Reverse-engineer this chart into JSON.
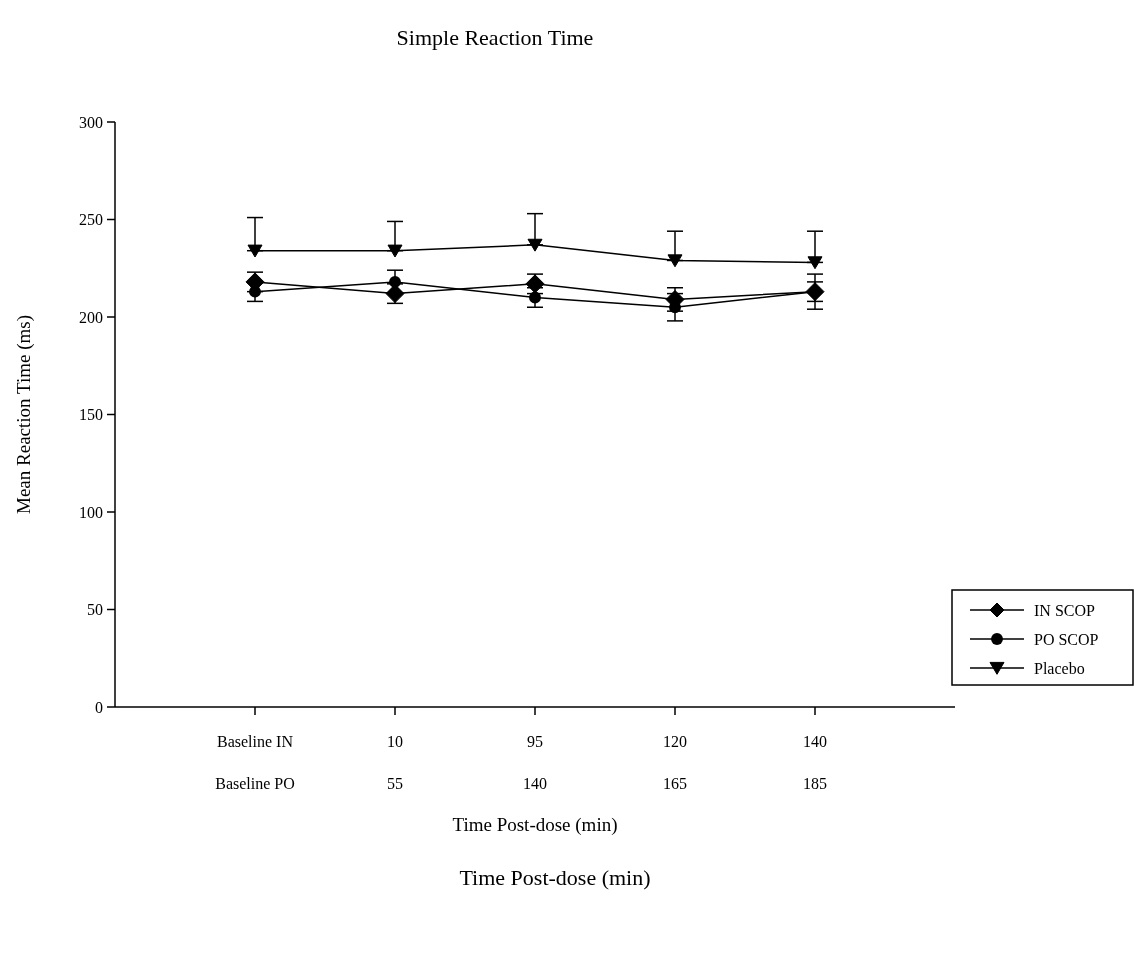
{
  "chart_data": {
    "type": "line",
    "title": "Simple Reaction Time",
    "ylabel": "Mean Reaction Time (ms)",
    "categories": [
      "Baseline IN\nBaseline PO",
      "10\n55",
      "95\n140",
      "120\n165",
      "140\n185"
    ],
    "ylim": [
      0,
      300
    ],
    "yticks": [
      0,
      50,
      100,
      150,
      200,
      250,
      300
    ],
    "legend": "right",
    "grid": false,
    "series": [
      {
        "name": "IN SCOP",
        "color": "#000000",
        "marker": "diamond",
        "values": [
          218,
          212,
          217,
          209,
          213
        ],
        "errors": [
          5,
          5,
          5,
          6,
          5
        ]
      },
      {
        "name": "PO SCOP",
        "color": "#000000",
        "marker": "circle",
        "values": [
          213,
          218,
          210,
          205,
          213
        ],
        "errors": [
          5,
          6,
          5,
          7,
          9
        ]
      },
      {
        "name": "Placebo",
        "color": "#000000",
        "marker": "triangle",
        "values": [
          234,
          234,
          237,
          229,
          228
        ],
        "errors": [
          [
            234,
            251
          ],
          [
            234,
            249
          ],
          [
            237,
            253
          ],
          [
            229,
            244
          ],
          [
            228,
            244
          ]
        ]
      }
    ],
    "annotations": [
      "Time Post-dose (min)",
      "Time Post-dose (min)"
    ]
  }
}
